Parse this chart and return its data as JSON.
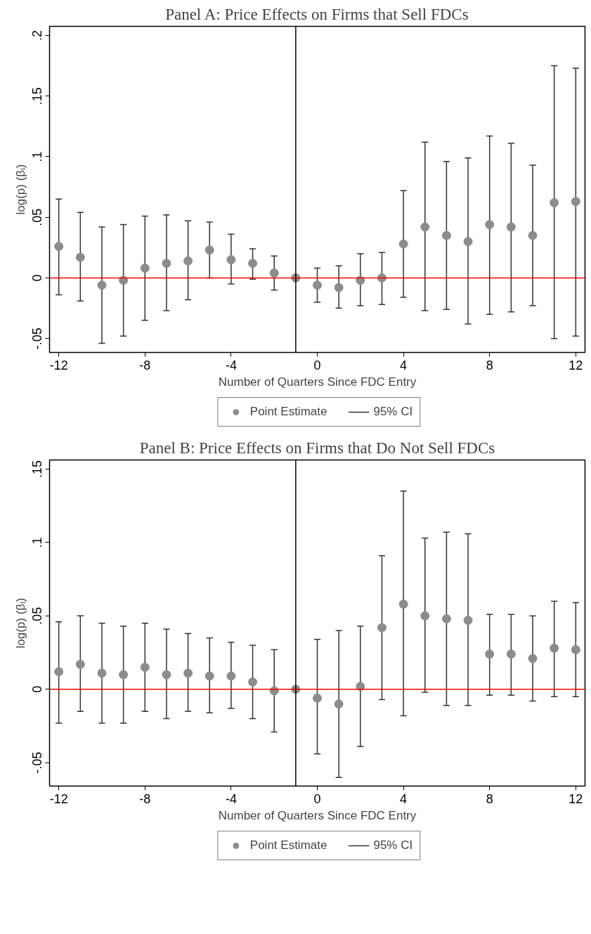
{
  "chart_data": [
    {
      "type": "scatter",
      "title": "Panel A: Price Effects on Firms that Sell FDCs",
      "xlabel": "Number of Quarters Since FDC Entry",
      "ylabel": "log(p) (βᵢ)",
      "x": [
        -12,
        -11,
        -10,
        -9,
        -8,
        -7,
        -6,
        -5,
        -4,
        -3,
        -2,
        -1,
        0,
        1,
        2,
        3,
        4,
        5,
        6,
        7,
        8,
        9,
        10,
        11,
        12
      ],
      "series": [
        {
          "name": "Point Estimate",
          "color": "#8c8c8c",
          "values": [
            0.026,
            0.017,
            -0.006,
            -0.002,
            0.008,
            0.012,
            0.014,
            0.023,
            0.015,
            0.012,
            0.004,
            0,
            -0.006,
            -0.008,
            -0.002,
            0,
            0.028,
            0.042,
            0.035,
            0.03,
            0.044,
            0.042,
            0.035,
            0.062,
            0.063
          ],
          "errors": [
            [
              -0.014,
              0.065
            ],
            [
              -0.019,
              0.054
            ],
            [
              -0.054,
              0.042
            ],
            [
              -0.048,
              0.044
            ],
            [
              -0.035,
              0.051
            ],
            [
              -0.027,
              0.052
            ],
            [
              -0.018,
              0.047
            ],
            [
              0,
              0.046
            ],
            [
              -0.005,
              0.036
            ],
            [
              -0.001,
              0.024
            ],
            [
              -0.01,
              0.018
            ],
            null,
            [
              -0.02,
              0.008
            ],
            [
              -0.025,
              0.01
            ],
            [
              -0.023,
              0.02
            ],
            [
              -0.022,
              0.021
            ],
            [
              -0.016,
              0.072
            ],
            [
              -0.027,
              0.112
            ],
            [
              -0.026,
              0.096
            ],
            [
              -0.038,
              0.099
            ],
            [
              -0.03,
              0.117
            ],
            [
              -0.028,
              0.111
            ],
            [
              -0.023,
              0.093
            ],
            [
              -0.05,
              0.175
            ],
            [
              -0.048,
              0.173
            ]
          ]
        }
      ],
      "annotations": [
        "95% CI"
      ],
      "xlim": [
        -12.43,
        12.43
      ],
      "xticks": [
        -12,
        -8,
        -4,
        0,
        4,
        8,
        12
      ],
      "ylim": [
        -0.0615,
        0.2075
      ],
      "yticks": [
        {
          "value": -0.05,
          "label": "-.05"
        },
        0,
        {
          "value": 0.05,
          "label": ".05"
        },
        {
          "value": 0.1,
          "label": ".1"
        },
        {
          "value": 0.15,
          "label": ".15"
        },
        {
          "value": 0.2,
          "label": ".2"
        }
      ],
      "ref_lines": [
        {
          "axis": "y",
          "value": 0,
          "color": "#ff0000"
        },
        {
          "axis": "x",
          "value": -1,
          "color": "#000000"
        }
      ],
      "grid": false,
      "legend": "bottom",
      "marker": "circle"
    },
    {
      "type": "scatter",
      "title": "Panel B: Price Effects on Firms that Do Not Sell FDCs",
      "xlabel": "Number of Quarters Since FDC Entry",
      "ylabel": "log(p) (βᵢ)",
      "x": [
        -12,
        -11,
        -10,
        -9,
        -8,
        -7,
        -6,
        -5,
        -4,
        -3,
        -2,
        -1,
        0,
        1,
        2,
        3,
        4,
        5,
        6,
        7,
        8,
        9,
        10,
        11,
        12
      ],
      "series": [
        {
          "name": "Point Estimate",
          "color": "#8c8c8c",
          "values": [
            0.012,
            0.017,
            0.011,
            0.01,
            0.015,
            0.01,
            0.011,
            0.009,
            0.009,
            0.005,
            -0.001,
            0,
            -0.006,
            -0.01,
            0.002,
            0.042,
            0.058,
            0.05,
            0.048,
            0.047,
            0.024,
            0.024,
            0.021,
            0.028,
            0.027
          ],
          "errors": [
            [
              -0.023,
              0.046
            ],
            [
              -0.015,
              0.05
            ],
            [
              -0.023,
              0.045
            ],
            [
              -0.023,
              0.043
            ],
            [
              -0.015,
              0.045
            ],
            [
              -0.02,
              0.041
            ],
            [
              -0.015,
              0.038
            ],
            [
              -0.016,
              0.035
            ],
            [
              -0.013,
              0.032
            ],
            [
              -0.02,
              0.03
            ],
            [
              -0.029,
              0.027
            ],
            null,
            [
              -0.044,
              0.034
            ],
            [
              -0.06,
              0.04
            ],
            [
              -0.039,
              0.043
            ],
            [
              -0.007,
              0.091
            ],
            [
              -0.018,
              0.135
            ],
            [
              -0.002,
              0.103
            ],
            [
              -0.011,
              0.107
            ],
            [
              -0.011,
              0.106
            ],
            [
              -0.004,
              0.051
            ],
            [
              -0.004,
              0.051
            ],
            [
              -0.008,
              0.05
            ],
            [
              -0.005,
              0.06
            ],
            [
              -0.005,
              0.059
            ]
          ]
        }
      ],
      "annotations": [
        "95% CI"
      ],
      "xlim": [
        -12.43,
        12.43
      ],
      "xticks": [
        -12,
        -8,
        -4,
        0,
        4,
        8,
        12
      ],
      "ylim": [
        -0.0659,
        0.1562
      ],
      "yticks": [
        {
          "value": -0.05,
          "label": "-.05"
        },
        0,
        {
          "value": 0.05,
          "label": ".05"
        },
        {
          "value": 0.1,
          "label": ".1"
        },
        {
          "value": 0.15,
          "label": ".15"
        }
      ],
      "ref_lines": [
        {
          "axis": "y",
          "value": 0,
          "color": "#ff0000"
        },
        {
          "axis": "x",
          "value": -1,
          "color": "#000000"
        }
      ],
      "grid": false,
      "legend": "bottom",
      "marker": "circle"
    }
  ]
}
